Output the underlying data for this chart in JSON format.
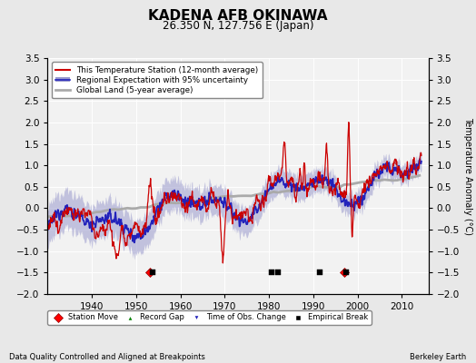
{
  "title": "KADENA AFB OKINAWA",
  "subtitle": "26.350 N, 127.756 E (Japan)",
  "ylabel": "Temperature Anomaly (°C)",
  "footer_left": "Data Quality Controlled and Aligned at Breakpoints",
  "footer_right": "Berkeley Earth",
  "xlim": [
    1930,
    2016
  ],
  "ylim": [
    -2.0,
    3.5
  ],
  "yticks": [
    -2,
    -1.5,
    -1,
    -0.5,
    0,
    0.5,
    1,
    1.5,
    2,
    2.5,
    3,
    3.5
  ],
  "xticks": [
    1940,
    1950,
    1960,
    1970,
    1980,
    1990,
    2000,
    2010
  ],
  "bg_color": "#e8e8e8",
  "plot_bg_color": "#f2f2f2",
  "station_color": "#cc0000",
  "regional_color": "#2222bb",
  "regional_fill_color": "#9999cc",
  "global_color": "#aaaaaa",
  "station_moves": [
    1953.0,
    1997.0
  ],
  "empirical_breaks": [
    1953.7,
    1980.5,
    1982.0,
    1991.5,
    1997.5
  ],
  "time_obs_changes": [],
  "record_gaps": [],
  "marker_y": -1.5
}
